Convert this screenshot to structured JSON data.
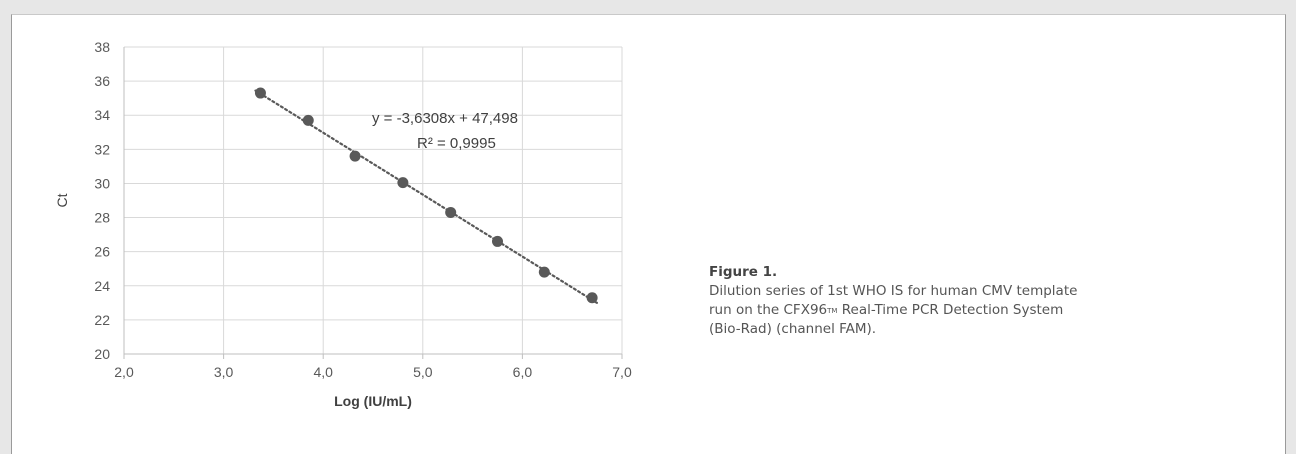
{
  "chart_data": {
    "type": "scatter",
    "xlabel": "Log (IU/mL)",
    "ylabel": "Ct",
    "xlim": [
      2.0,
      7.0
    ],
    "ylim": [
      20,
      38
    ],
    "x_ticks": [
      "2,0",
      "3,0",
      "4,0",
      "5,0",
      "6,0",
      "7,0"
    ],
    "y_ticks": [
      "20",
      "22",
      "24",
      "26",
      "28",
      "30",
      "32",
      "34",
      "36",
      "38"
    ],
    "x_tick_values": [
      2,
      3,
      4,
      5,
      6,
      7
    ],
    "y_tick_values": [
      20,
      22,
      24,
      26,
      28,
      30,
      32,
      34,
      36,
      38
    ],
    "grid": true,
    "series": [
      {
        "points": [
          {
            "x": 3.37,
            "y": 35.3
          },
          {
            "x": 3.85,
            "y": 33.7
          },
          {
            "x": 4.32,
            "y": 31.6
          },
          {
            "x": 4.8,
            "y": 30.05
          },
          {
            "x": 5.28,
            "y": 28.3
          },
          {
            "x": 5.75,
            "y": 26.6
          },
          {
            "x": 6.22,
            "y": 24.8
          },
          {
            "x": 6.7,
            "y": 23.3
          }
        ],
        "color": "#595959"
      }
    ],
    "trendline": {
      "slope": -3.6308,
      "intercept": 47.498,
      "x_range": [
        3.37,
        6.7
      ],
      "style": "dotted",
      "color": "#595959",
      "equation_label": "y = -3,6308x + 47,498",
      "r2_label": "R² = 0,9995"
    },
    "colors": {
      "grid": "#d9d9d9",
      "axis": "#bfbfbf",
      "tick_text": "#595959",
      "label_text": "#404040"
    }
  },
  "caption": {
    "title": "Figure 1.",
    "text_part1": "Dilution series of 1st WHO IS for human CMV template run on the CFX96",
    "trademark": "TM",
    "text_part2": " Real-Time PCR Detection System (Bio-Rad) (channel FAM)."
  }
}
